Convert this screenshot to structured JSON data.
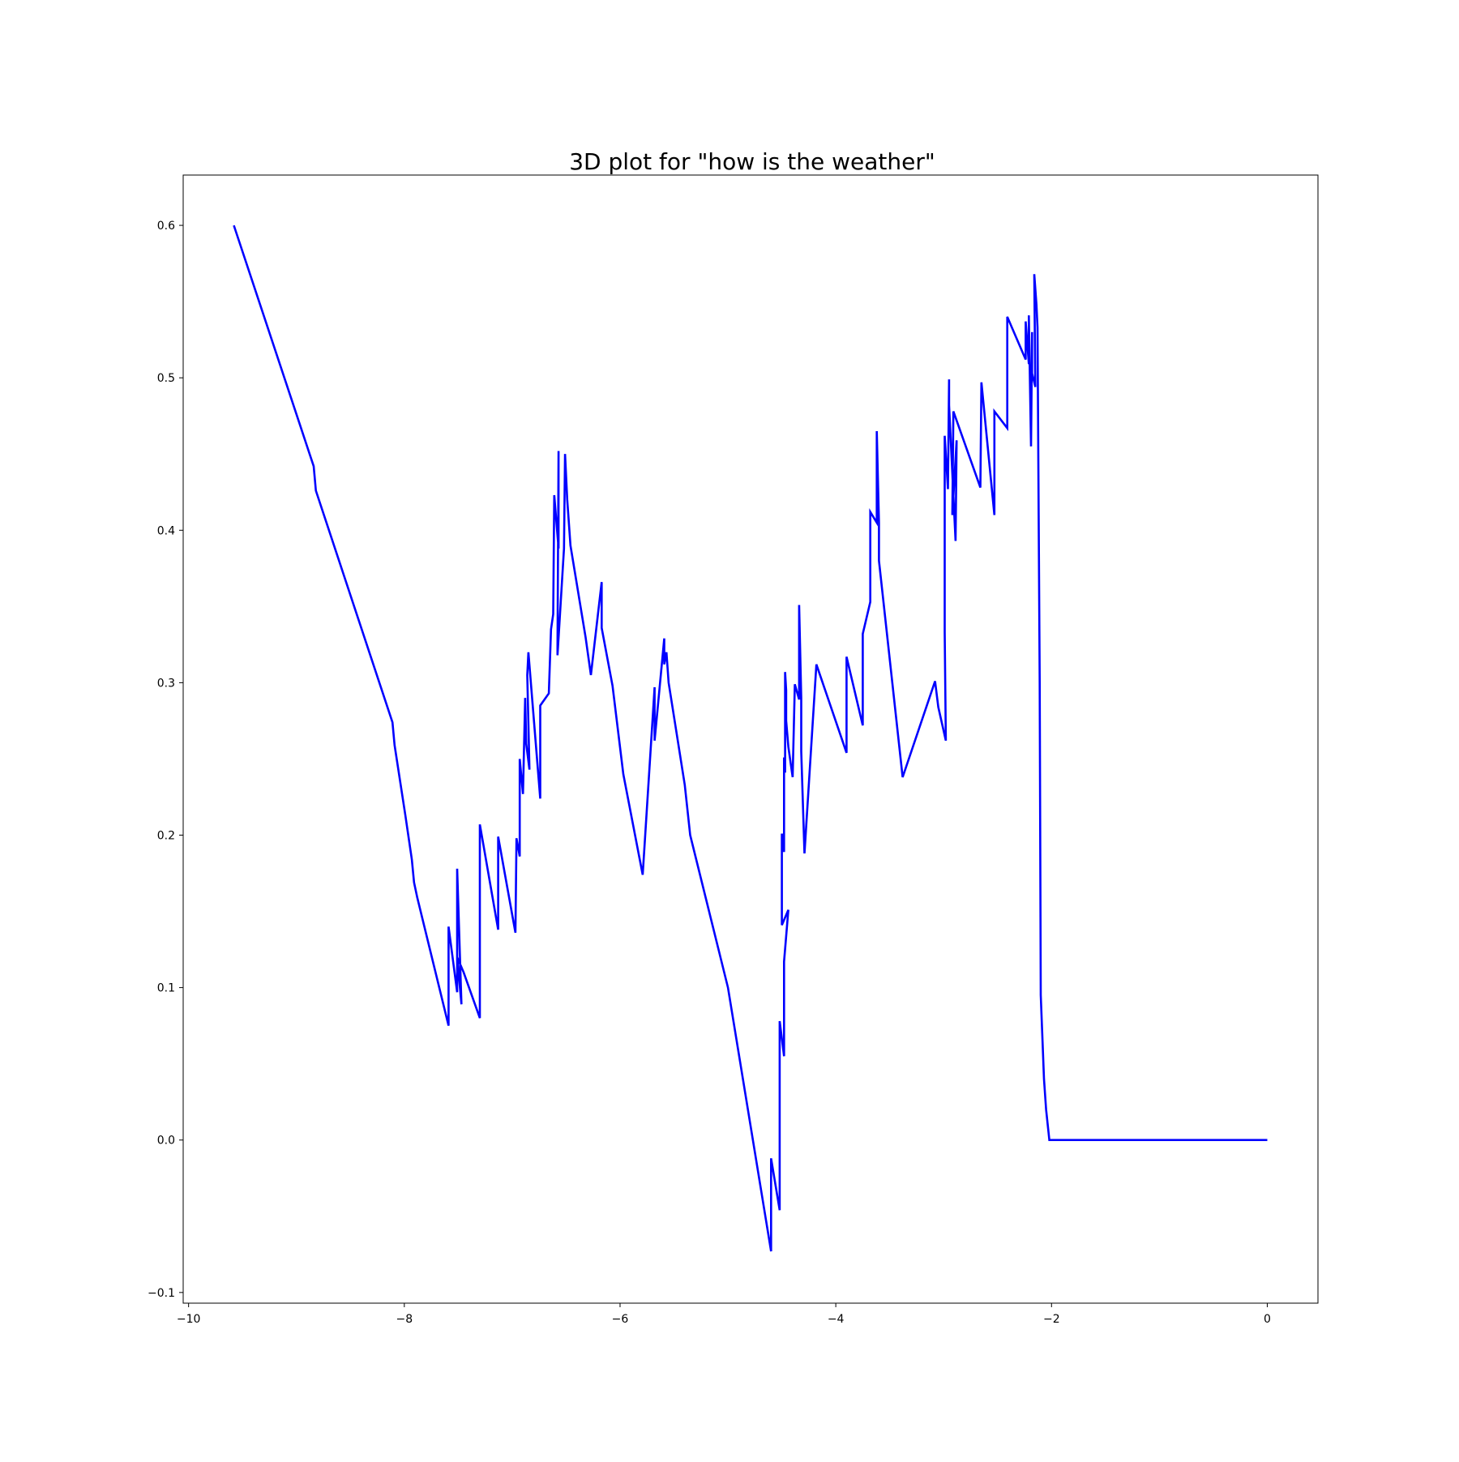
{
  "chart_data": {
    "type": "line",
    "title": "3D plot for \"how is the weather\"",
    "xlabel": "",
    "ylabel": "",
    "xlim": [
      -10.05,
      0.47
    ],
    "ylim": [
      -0.107,
      0.633
    ],
    "grid": false,
    "legend": null,
    "line_color": "#0000ff",
    "x_ticks": [
      {
        "value": -10,
        "label": "−10"
      },
      {
        "value": -8,
        "label": "−8"
      },
      {
        "value": -6,
        "label": "−6"
      },
      {
        "value": -4,
        "label": "−4"
      },
      {
        "value": -2,
        "label": "−2"
      },
      {
        "value": 0,
        "label": "0"
      }
    ],
    "y_ticks": [
      {
        "value": -0.1,
        "label": "−0.1"
      },
      {
        "value": 0.0,
        "label": "0.0"
      },
      {
        "value": 0.1,
        "label": "0.1"
      },
      {
        "value": 0.2,
        "label": "0.2"
      },
      {
        "value": 0.3,
        "label": "0.3"
      },
      {
        "value": 0.4,
        "label": "0.4"
      },
      {
        "value": 0.5,
        "label": "0.5"
      },
      {
        "value": 0.6,
        "label": "0.6"
      }
    ],
    "series": [
      {
        "x": [
          -9.58,
          -8.84,
          -8.82,
          -8.11,
          -8.09,
          -7.99,
          -7.93,
          -7.91,
          -7.88,
          -7.59,
          -7.59,
          -7.51,
          -7.51,
          -7.47,
          -7.51,
          -7.45,
          -7.3,
          -7.3,
          -7.13,
          -7.13,
          -6.97,
          -6.96,
          -6.93,
          -6.93,
          -6.9,
          -6.88,
          -6.87,
          -6.84,
          -6.86,
          -6.85,
          -6.74,
          -6.74,
          -6.66,
          -6.64,
          -6.62,
          -6.61,
          -6.57,
          -6.57,
          -6.58,
          -6.58,
          -6.52,
          -6.51,
          -6.49,
          -6.46,
          -6.32,
          -6.27,
          -6.17,
          -6.17,
          -6.07,
          -5.97,
          -5.79,
          -5.68,
          -5.68,
          -5.59,
          -5.59,
          -5.57,
          -5.55,
          -5.4,
          -5.35,
          -5.0,
          -4.6,
          -4.6,
          -4.52,
          -4.52,
          -4.48,
          -4.48,
          -4.44,
          -4.5,
          -4.5,
          -4.48,
          -4.48,
          -4.47,
          -4.47,
          -4.46,
          -4.46,
          -4.44,
          -4.4,
          -4.38,
          -4.34,
          -4.34,
          -4.32,
          -4.32,
          -4.29,
          -4.18,
          -3.9,
          -3.9,
          -3.75,
          -3.75,
          -3.68,
          -3.68,
          -3.62,
          -3.62,
          -3.6,
          -3.6,
          -3.38,
          -3.08,
          -3.05,
          -2.98,
          -2.99,
          -2.99,
          -2.96,
          -2.95,
          -2.95,
          -2.89,
          -2.88,
          -2.92,
          -2.91,
          -2.66,
          -2.65,
          -2.53,
          -2.53,
          -2.41,
          -2.41,
          -2.24,
          -2.24,
          -2.21,
          -2.21,
          -2.19,
          -2.18,
          -2.18,
          -2.15,
          -2.16,
          -2.14,
          -2.13,
          -2.11,
          -2.1,
          -2.07,
          -2.05,
          -2.02,
          -2.02,
          -2.0,
          -1.96,
          -1.87,
          -1.0,
          -0.4,
          -0.25,
          -0.15,
          0.0
        ],
        "y": [
          0.6,
          0.442,
          0.426,
          0.274,
          0.259,
          0.213,
          0.184,
          0.169,
          0.159,
          0.075,
          0.14,
          0.097,
          0.178,
          0.089,
          0.12,
          0.11,
          0.08,
          0.207,
          0.138,
          0.199,
          0.136,
          0.198,
          0.186,
          0.25,
          0.227,
          0.29,
          0.26,
          0.243,
          0.305,
          0.32,
          0.224,
          0.285,
          0.293,
          0.335,
          0.345,
          0.423,
          0.388,
          0.452,
          0.322,
          0.318,
          0.388,
          0.45,
          0.42,
          0.39,
          0.33,
          0.305,
          0.366,
          0.336,
          0.298,
          0.24,
          0.174,
          0.297,
          0.262,
          0.329,
          0.312,
          0.32,
          0.3,
          0.233,
          0.2,
          0.1,
          -0.073,
          -0.012,
          -0.046,
          0.078,
          0.055,
          0.117,
          0.151,
          0.141,
          0.201,
          0.189,
          0.251,
          0.241,
          0.307,
          0.295,
          0.275,
          0.258,
          0.238,
          0.299,
          0.289,
          0.351,
          0.29,
          0.255,
          0.188,
          0.312,
          0.254,
          0.317,
          0.272,
          0.332,
          0.353,
          0.412,
          0.405,
          0.465,
          0.405,
          0.38,
          0.238,
          0.301,
          0.284,
          0.262,
          0.333,
          0.462,
          0.427,
          0.499,
          0.482,
          0.393,
          0.459,
          0.41,
          0.478,
          0.428,
          0.497,
          0.41,
          0.478,
          0.467,
          0.54,
          0.512,
          0.537,
          0.509,
          0.541,
          0.455,
          0.53,
          0.503,
          0.494,
          0.568,
          0.548,
          0.533,
          0.3,
          0.095,
          0.04,
          0.02,
          0.0,
          0.0,
          0.0,
          0.0,
          0.0,
          0.0,
          0.0,
          0.0,
          0.0,
          0.0
        ]
      }
    ]
  }
}
